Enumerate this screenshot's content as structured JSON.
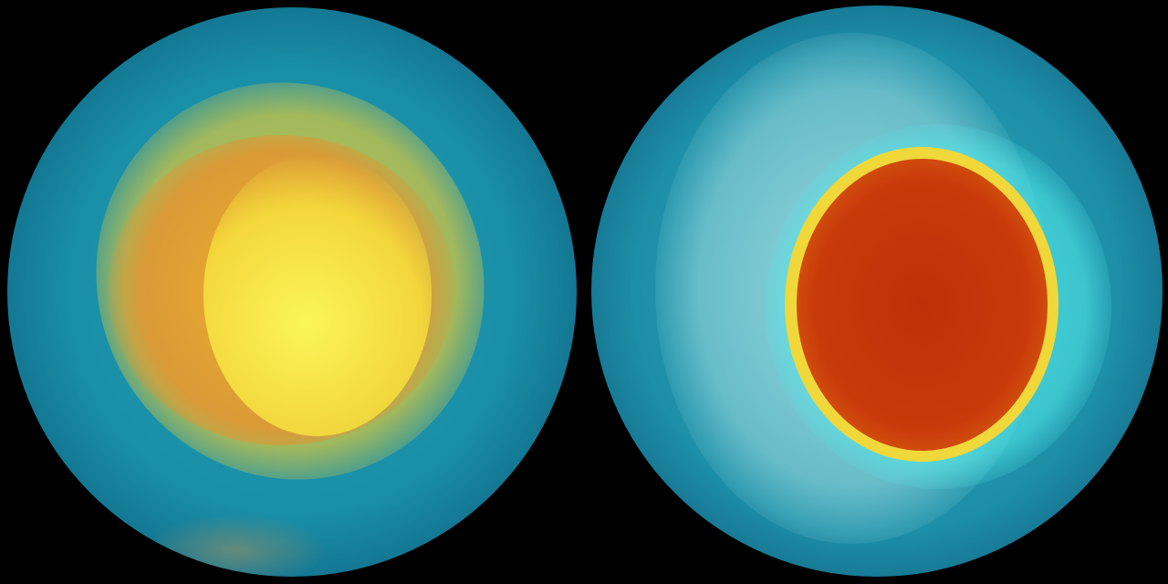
{
  "colors": {
    "background": "#000000",
    "ocean_teal": "#1a8fa8",
    "ozone_yellow": "#f0e030",
    "ozone_orange": "#f08a20",
    "ozone_red": "#c83a0a",
    "land_pale": "#a8d8dc"
  }
}
